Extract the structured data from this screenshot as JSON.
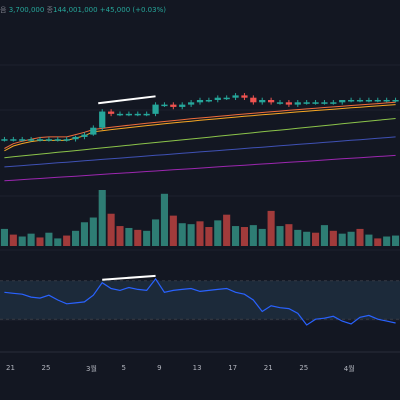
{
  "header": {
    "title_fragment": "음",
    "low_fragment": "3,700,000",
    "close_label": "종",
    "close_value": "144,001,000",
    "change": "+45,000 (+0.03%)"
  },
  "colors": {
    "background": "#131722",
    "up": "#26a69a",
    "down": "#ef5350",
    "volume_up": "#2e7d74",
    "volume_down": "#a23b3b",
    "ma_fast": "#ef6c3c",
    "ma_mid": "#f5a623",
    "ma_slow": "#8bc34a",
    "ma_long": "#3f51b5",
    "ma_longest": "#9c27b0",
    "rsi": "#2962ff",
    "divergence": "#ffffff",
    "rsi_band": "#1c2a3a"
  },
  "chart_data": [
    {
      "type": "candlestick",
      "title": "",
      "x_ticks": [
        "21",
        "25",
        "3월",
        "5",
        "9",
        "13",
        "17",
        "21",
        "25",
        "4월"
      ],
      "candles": [
        {
          "o": 0.0,
          "h": 0.01,
          "l": -0.01,
          "c": 0.0
        },
        {
          "o": 0.0,
          "h": 0.01,
          "l": -0.01,
          "c": 0.0
        },
        {
          "o": 0.0,
          "h": 0.01,
          "l": -0.01,
          "c": 0.0
        },
        {
          "o": 0.0,
          "h": 0.01,
          "l": -0.01,
          "c": 0.0
        },
        {
          "o": 0.0,
          "h": 0.01,
          "l": -0.01,
          "c": 0.0
        },
        {
          "o": 0.0,
          "h": 0.01,
          "l": -0.01,
          "c": 0.0
        },
        {
          "o": 0.0,
          "h": 0.01,
          "l": -0.01,
          "c": 0.0
        },
        {
          "o": 0.0,
          "h": 0.01,
          "l": -0.01,
          "c": 0.0
        },
        {
          "o": 0.0,
          "h": 0.015,
          "l": -0.01,
          "c": 0.01
        },
        {
          "o": 0.01,
          "h": 0.03,
          "l": 0.0,
          "c": 0.02
        },
        {
          "o": 0.02,
          "h": 0.06,
          "l": 0.015,
          "c": 0.05
        },
        {
          "o": 0.05,
          "h": 0.13,
          "l": 0.04,
          "c": 0.12
        },
        {
          "o": 0.12,
          "h": 0.13,
          "l": 0.1,
          "c": 0.11
        },
        {
          "o": 0.11,
          "h": 0.12,
          "l": 0.1,
          "c": 0.11
        },
        {
          "o": 0.11,
          "h": 0.12,
          "l": 0.1,
          "c": 0.11
        },
        {
          "o": 0.11,
          "h": 0.12,
          "l": 0.1,
          "c": 0.11
        },
        {
          "o": 0.11,
          "h": 0.12,
          "l": 0.1,
          "c": 0.11
        },
        {
          "o": 0.11,
          "h": 0.16,
          "l": 0.1,
          "c": 0.15
        },
        {
          "o": 0.15,
          "h": 0.16,
          "l": 0.14,
          "c": 0.15
        },
        {
          "o": 0.15,
          "h": 0.16,
          "l": 0.13,
          "c": 0.14
        },
        {
          "o": 0.14,
          "h": 0.16,
          "l": 0.13,
          "c": 0.15
        },
        {
          "o": 0.15,
          "h": 0.17,
          "l": 0.14,
          "c": 0.16
        },
        {
          "o": 0.16,
          "h": 0.18,
          "l": 0.15,
          "c": 0.17
        },
        {
          "o": 0.17,
          "h": 0.18,
          "l": 0.16,
          "c": 0.17
        },
        {
          "o": 0.17,
          "h": 0.19,
          "l": 0.16,
          "c": 0.18
        },
        {
          "o": 0.18,
          "h": 0.19,
          "l": 0.17,
          "c": 0.18
        },
        {
          "o": 0.18,
          "h": 0.2,
          "l": 0.17,
          "c": 0.19
        },
        {
          "o": 0.19,
          "h": 0.2,
          "l": 0.17,
          "c": 0.18
        },
        {
          "o": 0.18,
          "h": 0.19,
          "l": 0.15,
          "c": 0.16
        },
        {
          "o": 0.16,
          "h": 0.18,
          "l": 0.15,
          "c": 0.17
        },
        {
          "o": 0.17,
          "h": 0.18,
          "l": 0.15,
          "c": 0.16
        },
        {
          "o": 0.16,
          "h": 0.17,
          "l": 0.15,
          "c": 0.16
        },
        {
          "o": 0.16,
          "h": 0.17,
          "l": 0.14,
          "c": 0.15
        },
        {
          "o": 0.15,
          "h": 0.17,
          "l": 0.14,
          "c": 0.16
        },
        {
          "o": 0.16,
          "h": 0.17,
          "l": 0.15,
          "c": 0.16
        },
        {
          "o": 0.16,
          "h": 0.17,
          "l": 0.15,
          "c": 0.16
        },
        {
          "o": 0.16,
          "h": 0.17,
          "l": 0.15,
          "c": 0.16
        },
        {
          "o": 0.16,
          "h": 0.17,
          "l": 0.15,
          "c": 0.16
        },
        {
          "o": 0.16,
          "h": 0.17,
          "l": 0.15,
          "c": 0.17
        },
        {
          "o": 0.17,
          "h": 0.18,
          "l": 0.16,
          "c": 0.17
        },
        {
          "o": 0.17,
          "h": 0.18,
          "l": 0.16,
          "c": 0.17
        },
        {
          "o": 0.17,
          "h": 0.18,
          "l": 0.16,
          "c": 0.17
        },
        {
          "o": 0.17,
          "h": 0.18,
          "l": 0.16,
          "c": 0.17
        },
        {
          "o": 0.17,
          "h": 0.18,
          "l": 0.16,
          "c": 0.17
        },
        {
          "o": 0.17,
          "h": 0.18,
          "l": 0.16,
          "c": 0.17
        }
      ],
      "moving_averages": [
        {
          "values_start": -0.04,
          "values_end": 0.16
        },
        {
          "values_start": -0.05,
          "values_end": 0.15
        },
        {
          "values_start": -0.08,
          "values_end": 0.09
        },
        {
          "values_start": -0.12,
          "values_end": 0.01
        },
        {
          "values_start": -0.18,
          "values_end": -0.07
        }
      ],
      "divergence_line": {
        "from_candle": 11,
        "to_candle": 17
      }
    },
    {
      "type": "bar",
      "title": "",
      "values": [
        1.8,
        1.2,
        1.0,
        1.3,
        0.9,
        1.4,
        0.8,
        1.1,
        1.6,
        2.5,
        3.0,
        5.9,
        3.4,
        2.1,
        1.9,
        1.7,
        1.6,
        2.8,
        5.5,
        3.2,
        2.4,
        2.3,
        2.6,
        2.0,
        2.7,
        3.3,
        2.1,
        2.0,
        2.2,
        1.8,
        3.7,
        2.1,
        2.3,
        1.7,
        1.5,
        1.4,
        2.2,
        1.6,
        1.3,
        1.5,
        1.8,
        1.2,
        0.8,
        1.0,
        1.1
      ],
      "up": [
        true,
        false,
        true,
        true,
        false,
        true,
        true,
        false,
        true,
        true,
        true,
        true,
        false,
        false,
        true,
        false,
        true,
        true,
        true,
        false,
        true,
        true,
        false,
        false,
        true,
        false,
        true,
        false,
        true,
        true,
        false,
        true,
        false,
        true,
        true,
        false,
        true,
        false,
        true,
        true,
        false,
        true,
        false,
        true,
        true
      ]
    },
    {
      "type": "line",
      "title": "",
      "ylim": [
        0,
        100
      ],
      "band": [
        30,
        70
      ],
      "values": [
        58,
        57,
        56,
        53,
        52,
        55,
        50,
        46,
        47,
        48,
        55,
        68,
        62,
        60,
        63,
        61,
        60,
        72,
        58,
        60,
        61,
        62,
        59,
        60,
        61,
        62,
        58,
        56,
        50,
        38,
        44,
        42,
        41,
        36,
        24,
        30,
        31,
        33,
        28,
        25,
        32,
        34,
        30,
        28,
        26
      ],
      "divergence_line": {
        "from_index": 11,
        "to_index": 17
      }
    }
  ]
}
